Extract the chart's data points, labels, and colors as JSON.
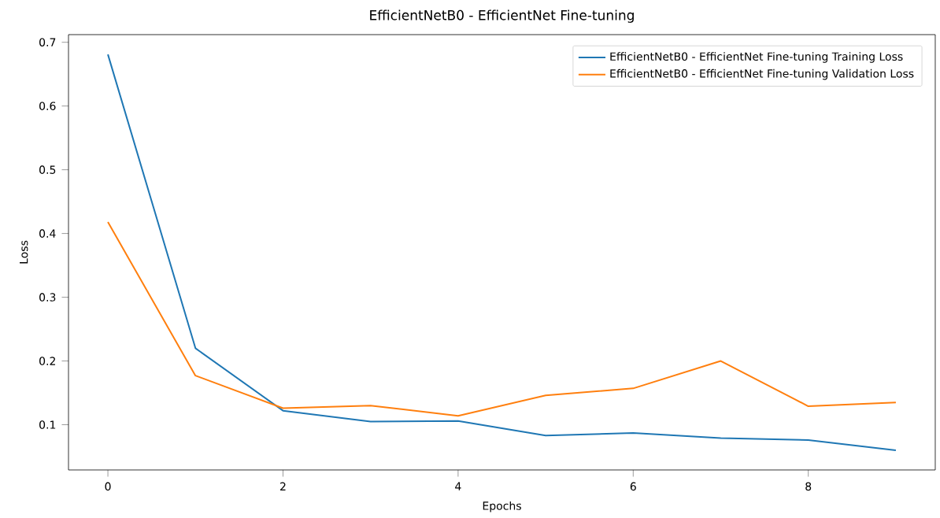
{
  "chart_data": {
    "type": "line",
    "title": "EfficientNetB0 - EfficientNet Fine-tuning",
    "xlabel": "Epochs",
    "ylabel": "Loss",
    "x": [
      0,
      1,
      2,
      3,
      4,
      5,
      6,
      7,
      8,
      9
    ],
    "series": [
      {
        "name": "EfficientNetB0 - EfficientNet Fine-tuning Training Loss",
        "color": "#1f77b4",
        "values": [
          0.681,
          0.22,
          0.122,
          0.105,
          0.106,
          0.083,
          0.087,
          0.079,
          0.076,
          0.06
        ]
      },
      {
        "name": "EfficientNetB0 - EfficientNet Fine-tuning Validation Loss",
        "color": "#ff7f0e",
        "values": [
          0.418,
          0.177,
          0.126,
          0.13,
          0.114,
          0.146,
          0.157,
          0.2,
          0.129,
          0.135
        ]
      }
    ],
    "xlim": [
      -0.45,
      9.45
    ],
    "ylim": [
      0.029,
      0.712
    ],
    "xticks": [
      0,
      2,
      4,
      6,
      8
    ],
    "yticks": [
      0.1,
      0.2,
      0.3,
      0.4,
      0.5,
      0.6,
      0.7
    ],
    "grid": false,
    "legend": "top right",
    "marker": "none",
    "line_style": "solid"
  }
}
